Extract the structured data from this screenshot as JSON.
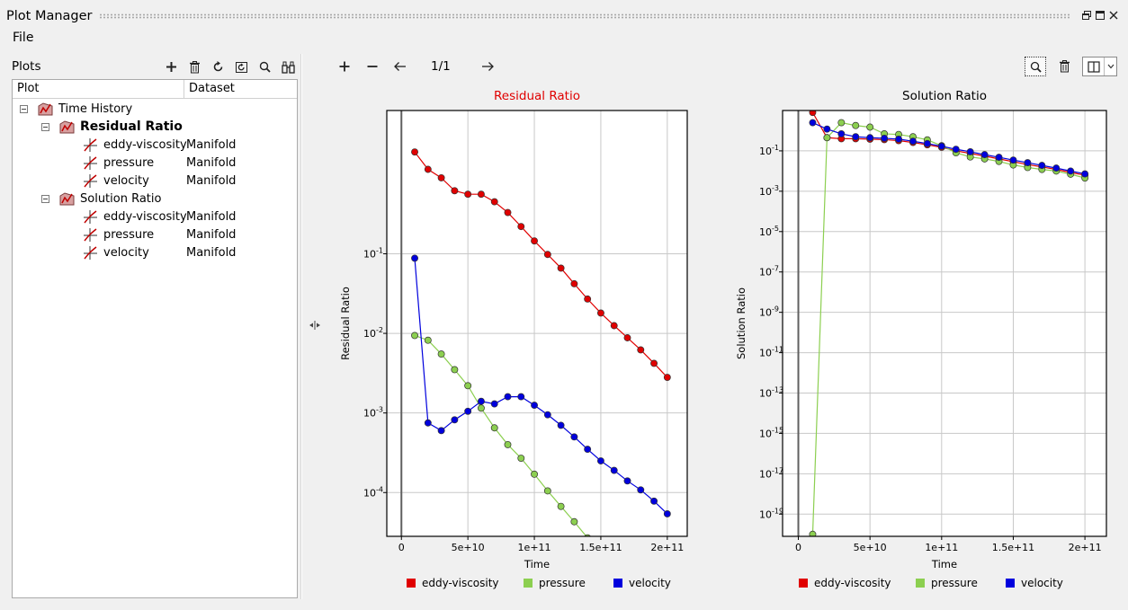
{
  "window": {
    "title": "Plot Manager"
  },
  "menu": [
    "File"
  ],
  "plots_panel": {
    "label": "Plots",
    "toolbar_icons": [
      "add-icon",
      "delete-icon",
      "refresh-icon",
      "reload-icon",
      "search-icon",
      "binoculars-icon"
    ],
    "columns": [
      "Plot",
      "Dataset"
    ],
    "groups": [
      {
        "name": "Time History",
        "children": [
          {
            "name": "Residual Ratio",
            "bold": true,
            "children": [
              {
                "name": "eddy-viscosity",
                "dataset": "Manifold"
              },
              {
                "name": "pressure",
                "dataset": "Manifold"
              },
              {
                "name": "velocity",
                "dataset": "Manifold"
              }
            ]
          },
          {
            "name": "Solution Ratio",
            "bold": false,
            "children": [
              {
                "name": "eddy-viscosity",
                "dataset": "Manifold"
              },
              {
                "name": "pressure",
                "dataset": "Manifold"
              },
              {
                "name": "velocity",
                "dataset": "Manifold"
              }
            ]
          }
        ]
      }
    ]
  },
  "plot_toolbar": {
    "page_indicator": "1/1"
  },
  "colors": {
    "eddy-viscosity": "#e00000",
    "pressure": "#8ccf50",
    "velocity": "#0000dd",
    "active_title": "#e00000"
  },
  "chart_data": [
    {
      "type": "line",
      "title": "Residual Ratio",
      "active": true,
      "xlabel": "Time",
      "ylabel": "Residual Ratio",
      "yscale": "log",
      "xlim": [
        -11000000000.0,
        215000000000.0
      ],
      "ylim_log10": [
        -4.55,
        0.8
      ],
      "xticks": [
        {
          "value": 0,
          "label": "0"
        },
        {
          "value": 50000000000.0,
          "label": "5e+10"
        },
        {
          "value": 100000000000.0,
          "label": "1e+11"
        },
        {
          "value": 150000000000.0,
          "label": "1.5e+11"
        },
        {
          "value": 200000000000.0,
          "label": "2e+11"
        }
      ],
      "yticks": [
        {
          "exp": -1,
          "label": "10",
          "sup": "-1"
        },
        {
          "exp": -2,
          "label": "10",
          "sup": "-2"
        },
        {
          "exp": -3,
          "label": "10",
          "sup": "-3"
        },
        {
          "exp": -4,
          "label": "10",
          "sup": "-4"
        }
      ],
      "grid": true,
      "legend": "bottom",
      "x": [
        10000000000.0,
        20000000000.0,
        30000000000.0,
        40000000000.0,
        50000000000.0,
        60000000000.0,
        70000000000.0,
        80000000000.0,
        90000000000.0,
        100000000000.0,
        110000000000.0,
        120000000000.0,
        130000000000.0,
        140000000000.0,
        150000000000.0,
        160000000000.0,
        170000000000.0,
        180000000000.0,
        190000000000.0,
        200000000000.0
      ],
      "series": [
        {
          "name": "eddy-viscosity",
          "values": [
            1.9,
            1.15,
            0.9,
            0.62,
            0.56,
            0.56,
            0.45,
            0.33,
            0.22,
            0.145,
            0.098,
            0.066,
            0.042,
            0.027,
            0.018,
            0.0125,
            0.0088,
            0.0062,
            0.0042,
            0.0028
          ]
        },
        {
          "name": "pressure",
          "values": [
            0.0094,
            0.0082,
            0.0055,
            0.0035,
            0.0022,
            0.00115,
            0.00065,
            0.0004,
            0.00027,
            0.00017,
            0.000105,
            6.7e-05,
            4.3e-05,
            2.7e-05,
            1.95e-05,
            1.45e-05,
            1.05e-05,
            7.8e-06,
            5.5e-06,
            4e-06
          ]
        },
        {
          "name": "velocity",
          "values": [
            0.088,
            0.00075,
            0.0006,
            0.00082,
            0.00105,
            0.0014,
            0.0013,
            0.0016,
            0.0016,
            0.00125,
            0.00095,
            0.0007,
            0.0005,
            0.00035,
            0.00025,
            0.00019,
            0.00014,
            0.000108,
            7.8e-05,
            5.4e-05
          ]
        }
      ]
    },
    {
      "type": "line",
      "title": "Solution Ratio",
      "active": false,
      "xlabel": "Time",
      "ylabel": "Solution Ratio",
      "yscale": "log",
      "xlim": [
        -11000000000.0,
        215000000000.0
      ],
      "ylim_log10": [
        -20.1,
        1.0
      ],
      "xticks": [
        {
          "value": 0,
          "label": "0"
        },
        {
          "value": 50000000000.0,
          "label": "5e+10"
        },
        {
          "value": 100000000000.0,
          "label": "1e+11"
        },
        {
          "value": 150000000000.0,
          "label": "1.5e+11"
        },
        {
          "value": 200000000000.0,
          "label": "2e+11"
        }
      ],
      "yticks": [
        {
          "exp": -1,
          "label": "10",
          "sup": "-1"
        },
        {
          "exp": -3,
          "label": "10",
          "sup": "-3"
        },
        {
          "exp": -5,
          "label": "10",
          "sup": "-5"
        },
        {
          "exp": -7,
          "label": "10",
          "sup": "-7"
        },
        {
          "exp": -9,
          "label": "10",
          "sup": "-9"
        },
        {
          "exp": -11,
          "label": "10",
          "sup": "-11"
        },
        {
          "exp": -13,
          "label": "10",
          "sup": "-13"
        },
        {
          "exp": -15,
          "label": "10",
          "sup": "-15"
        },
        {
          "exp": -17,
          "label": "10",
          "sup": "-17"
        },
        {
          "exp": -19,
          "label": "10",
          "sup": "-19"
        }
      ],
      "grid": true,
      "legend": "bottom",
      "x": [
        10000000000.0,
        20000000000.0,
        30000000000.0,
        40000000000.0,
        50000000000.0,
        60000000000.0,
        70000000000.0,
        80000000000.0,
        90000000000.0,
        100000000000.0,
        110000000000.0,
        120000000000.0,
        130000000000.0,
        140000000000.0,
        150000000000.0,
        160000000000.0,
        170000000000.0,
        180000000000.0,
        190000000000.0,
        200000000000.0
      ],
      "series": [
        {
          "name": "eddy-viscosity",
          "values": [
            8,
            0.45,
            0.4,
            0.4,
            0.38,
            0.36,
            0.32,
            0.26,
            0.2,
            0.15,
            0.1,
            0.075,
            0.055,
            0.04,
            0.029,
            0.021,
            0.016,
            0.012,
            0.0085,
            0.0062
          ]
        },
        {
          "name": "pressure",
          "values": [
            1e-20,
            0.45,
            2.5,
            1.8,
            1.5,
            0.7,
            0.65,
            0.5,
            0.35,
            0.18,
            0.08,
            0.05,
            0.04,
            0.03,
            0.02,
            0.015,
            0.012,
            0.01,
            0.007,
            0.0045
          ]
        },
        {
          "name": "velocity",
          "values": [
            2.5,
            1.2,
            0.7,
            0.5,
            0.45,
            0.42,
            0.38,
            0.3,
            0.23,
            0.17,
            0.12,
            0.09,
            0.065,
            0.048,
            0.035,
            0.026,
            0.019,
            0.014,
            0.01,
            0.0072
          ]
        }
      ]
    }
  ]
}
